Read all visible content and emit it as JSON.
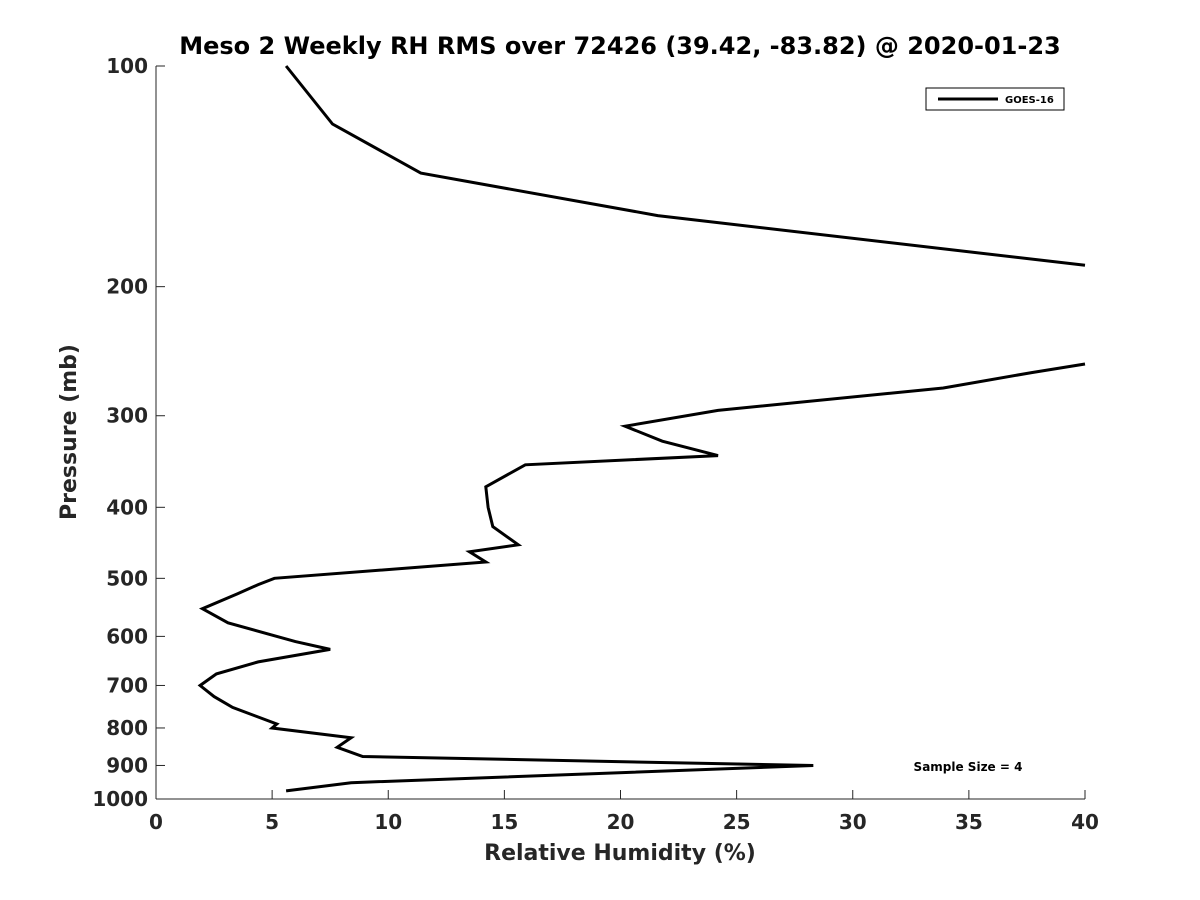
{
  "chart_data": {
    "type": "line",
    "title": "Meso 2 Weekly RH RMS over 72426 (39.42, -83.82) @ 2020-01-23",
    "xlabel": "Relative Humidity (%)",
    "ylabel": "Pressure (mb)",
    "xlim": [
      0,
      40
    ],
    "ylim": [
      100,
      1000
    ],
    "y_scale": "log",
    "y_reversed": true,
    "x_ticks": [
      0,
      5,
      10,
      15,
      20,
      25,
      30,
      35,
      40
    ],
    "y_ticks": [
      100,
      200,
      300,
      400,
      500,
      600,
      700,
      800,
      900,
      1000
    ],
    "grid": false,
    "legend": {
      "placement": "top-right",
      "entries": [
        "GOES-16"
      ]
    },
    "annotation": "Sample Size = 4",
    "series": [
      {
        "name": "GOES-16",
        "color": "#000000",
        "points": [
          [
            5.6,
            975
          ],
          [
            8.4,
            950
          ],
          [
            28.3,
            900
          ],
          [
            8.9,
            875
          ],
          [
            7.8,
            850
          ],
          [
            8.4,
            825
          ],
          [
            5.0,
            800
          ],
          [
            5.2,
            790
          ],
          [
            3.3,
            750
          ],
          [
            2.5,
            725
          ],
          [
            1.9,
            700
          ],
          [
            2.6,
            675
          ],
          [
            4.4,
            650
          ],
          [
            7.5,
            625
          ],
          [
            6.0,
            610
          ],
          [
            3.1,
            575
          ],
          [
            2.0,
            550
          ],
          [
            3.5,
            525
          ],
          [
            4.4,
            510
          ],
          [
            5.1,
            500
          ],
          [
            14.2,
            475
          ],
          [
            13.5,
            460
          ],
          [
            15.6,
            450
          ],
          [
            14.5,
            425
          ],
          [
            14.3,
            400
          ],
          [
            14.2,
            375
          ],
          [
            15.9,
            350
          ],
          [
            24.2,
            340
          ],
          [
            21.8,
            325
          ],
          [
            20.2,
            310
          ],
          [
            24.2,
            295
          ],
          [
            33.9,
            275
          ],
          [
            37.7,
            262
          ],
          [
            40.0,
            255
          ]
        ]
      },
      {
        "name": "GOES-16",
        "color": "#000000",
        "points": [
          [
            40.0,
            187
          ],
          [
            21.6,
            160
          ],
          [
            11.4,
            140
          ],
          [
            7.6,
            120
          ],
          [
            5.6,
            100
          ]
        ]
      }
    ]
  }
}
